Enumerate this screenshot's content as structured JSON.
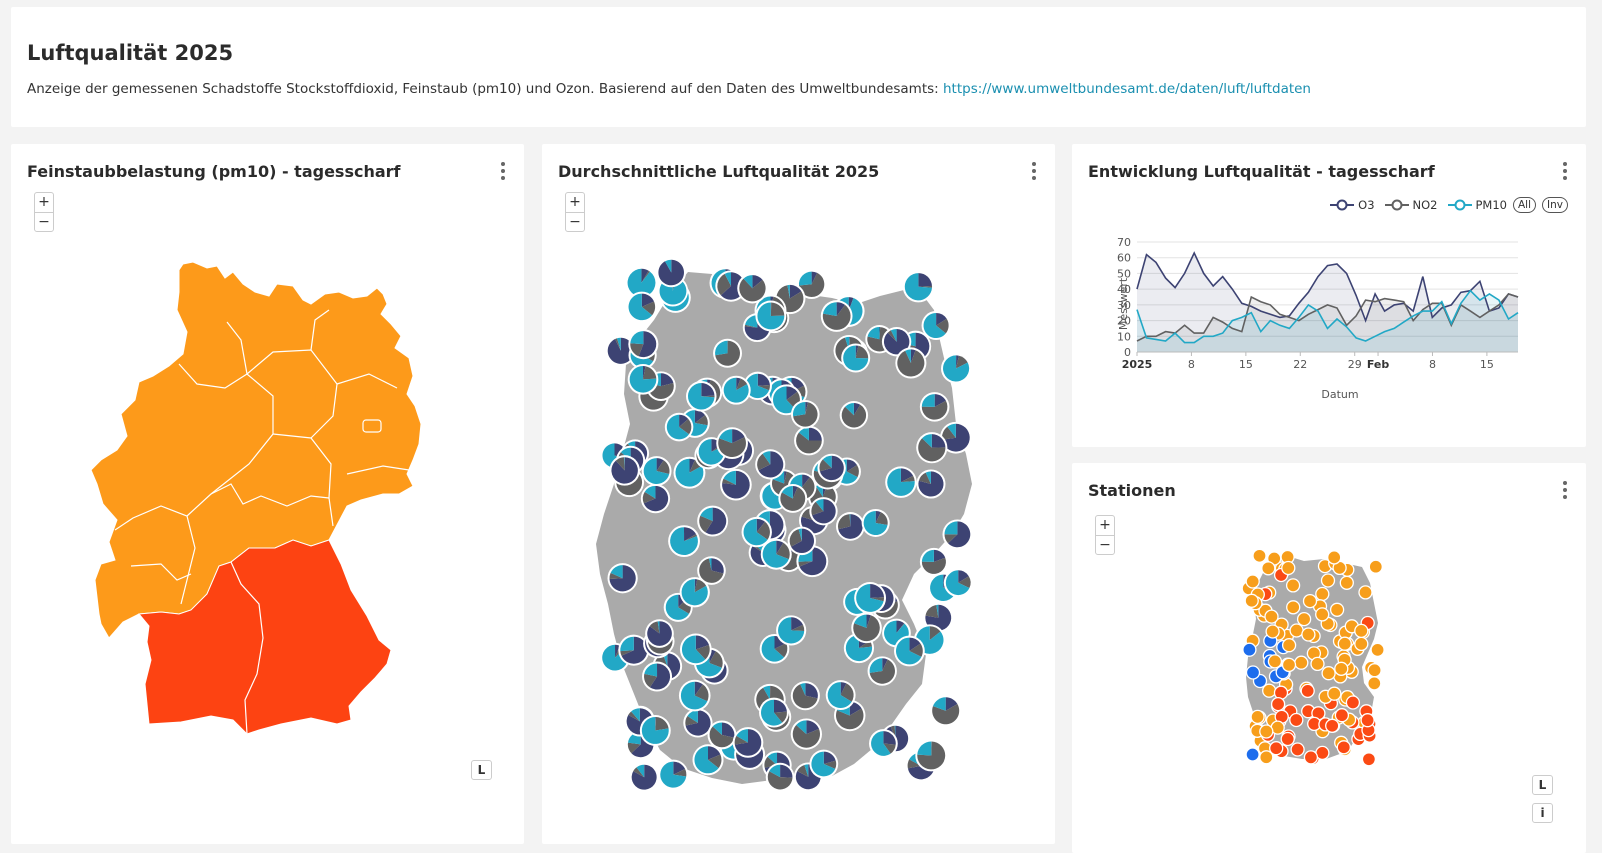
{
  "header": {
    "title": "Luftqualität 2025",
    "description": "Anzeige der gemessenen Schadstoffe Stockstoffdioxid, Feinstaub (pm10) und Ozon. Basierend auf den Daten des Umweltbundesamts: ",
    "link_text": "https://www.umweltbundesamt.de/daten/luft/luftdaten"
  },
  "panels": {
    "pm10_map": {
      "title": "Feinstaubbelastung (pm10) - tagesscharf",
      "zoom_in": "+",
      "zoom_out": "−",
      "layer_button": "L"
    },
    "avg_map": {
      "title": "Durchschnittliche Luftqualität 2025",
      "zoom_in": "+",
      "zoom_out": "−"
    },
    "trend": {
      "title": "Entwicklung Luftqualität - tagesscharf",
      "pill_all": "All",
      "pill_inv": "Inv"
    },
    "stations": {
      "title": "Stationen",
      "zoom_in": "+",
      "zoom_out": "−",
      "layer_button": "L",
      "info_button": "i"
    }
  },
  "colors": {
    "o3": "#3d4373",
    "no2": "#616161",
    "pm10": "#22a8c6",
    "region_orange": "#fd9a1a",
    "region_red": "#fd4312",
    "station_orange": "#f79e1b",
    "station_red": "#fb4a14",
    "station_blue": "#1d6ded",
    "map_grey": "#a8a8a8"
  },
  "chart_data": {
    "type": "line",
    "xlabel": "Datum",
    "ylabel": "Messwert",
    "ylim": [
      0,
      70
    ],
    "yticks": [
      "0",
      "10",
      "20",
      "30",
      "40",
      "50",
      "60",
      "70"
    ],
    "xticks": [
      "2025",
      "8",
      "15",
      "22",
      "29",
      "Feb",
      "8",
      "15"
    ],
    "legend_position": "top-right",
    "series": [
      {
        "name": "O3",
        "values": [
          40,
          62,
          57,
          47,
          41,
          50,
          63,
          50,
          42,
          48,
          40,
          31,
          29,
          26,
          24,
          22,
          23,
          31,
          38,
          48,
          55,
          56,
          50,
          36,
          20,
          37,
          26,
          30,
          31,
          26,
          48,
          22,
          28,
          30,
          38,
          39,
          45,
          26,
          28,
          37,
          35
        ]
      },
      {
        "name": "NO2",
        "values": [
          7,
          10,
          10,
          13,
          12,
          17,
          12,
          12,
          22,
          19,
          15,
          13,
          35,
          32,
          30,
          24,
          22,
          20,
          24,
          27,
          30,
          28,
          17,
          23,
          33,
          32,
          34,
          33,
          32,
          20,
          27,
          31,
          31,
          17,
          30,
          26,
          22,
          26,
          30,
          37,
          35
        ]
      },
      {
        "name": "PM10",
        "values": [
          27,
          9,
          8,
          7,
          12,
          6,
          6,
          10,
          10,
          12,
          20,
          22,
          25,
          13,
          20,
          17,
          15,
          22,
          30,
          26,
          15,
          21,
          16,
          9,
          7,
          10,
          13,
          15,
          19,
          23,
          26,
          26,
          32,
          18,
          31,
          39,
          33,
          37,
          33,
          21,
          25
        ]
      }
    ]
  }
}
